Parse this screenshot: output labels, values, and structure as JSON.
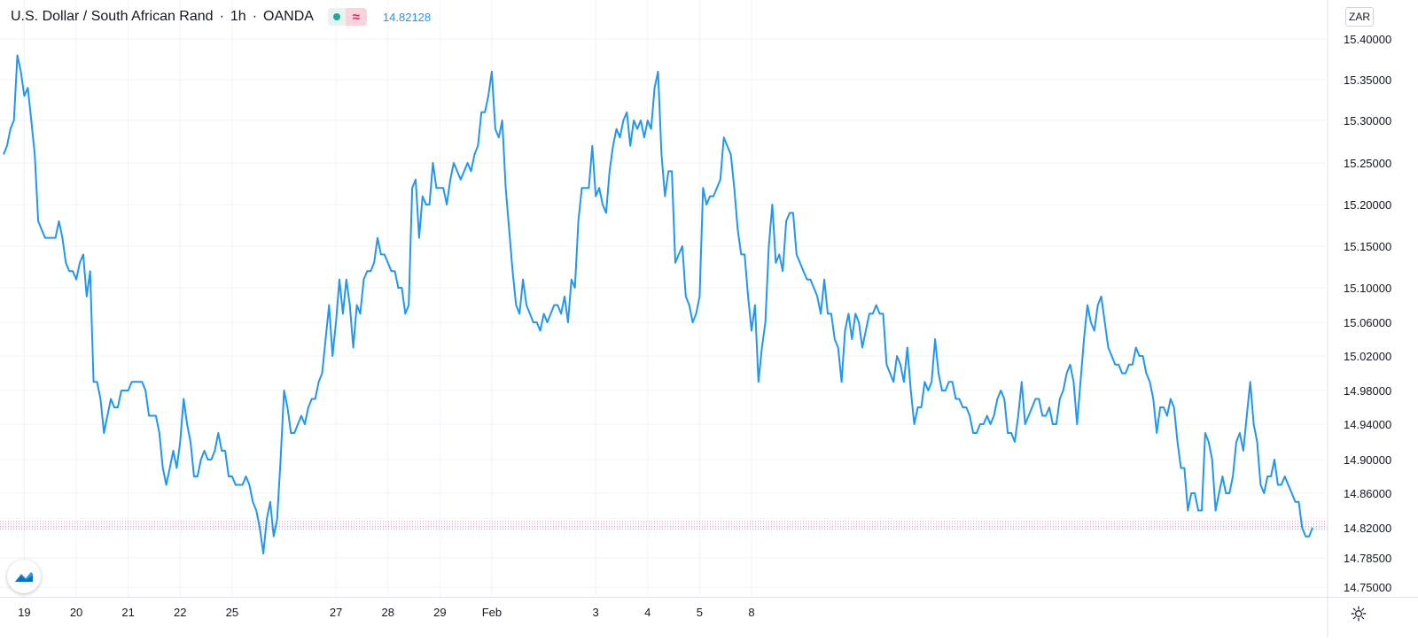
{
  "legend": {
    "symbol": "U.S. Dollar / South African Rand",
    "interval": "1h",
    "source": "OANDA",
    "last_price": "14.82128",
    "sep": "·",
    "wave_glyph": "≈"
  },
  "currency_label": "ZAR",
  "icons": {
    "market_status": "market-open-dot-icon",
    "indicator": "wave-icon",
    "logo": "tradingview-logo-icon",
    "settings": "gear-icon"
  },
  "colors": {
    "line": "#2196f3",
    "grid": "#f0f3fa",
    "axis_text": "#131722",
    "accent_green": "#26a69a",
    "accent_red": "#e0245e"
  },
  "chart_data": {
    "type": "line",
    "title": "U.S. Dollar / South African Rand · 1h · OANDA",
    "ylabel": "",
    "xlabel": "",
    "ylim": [
      14.75,
      15.42
    ],
    "y_ticks": [
      "15.40000",
      "15.35000",
      "15.30000",
      "15.25000",
      "15.20000",
      "15.15000",
      "15.10000",
      "15.06000",
      "15.02000",
      "14.98000",
      "14.94000",
      "14.90000",
      "14.86000",
      "14.82000",
      "14.78500",
      "14.75000"
    ],
    "x_ticks": [
      "19",
      "20",
      "21",
      "22",
      "25",
      "27",
      "28",
      "29",
      "Feb",
      "3",
      "4",
      "5",
      "8"
    ],
    "x_tick_index": [
      6,
      21,
      36,
      51,
      66,
      96,
      111,
      126,
      141,
      171,
      186,
      201,
      216
    ],
    "grid": true,
    "last_price": 14.82128,
    "series": [
      {
        "values": [
          15.26,
          15.27,
          15.29,
          15.3,
          15.38,
          15.36,
          15.33,
          15.34,
          15.3,
          15.26,
          15.18,
          15.17,
          15.16,
          15.16,
          15.16,
          15.16,
          15.18,
          15.16,
          15.13,
          15.12,
          15.12,
          15.11,
          15.13,
          15.14,
          15.09,
          15.12,
          14.99,
          14.99,
          14.97,
          14.93,
          14.95,
          14.97,
          14.96,
          14.96,
          14.98,
          14.98,
          14.98,
          14.99,
          14.99,
          14.99,
          14.99,
          14.98,
          14.95,
          14.95,
          14.95,
          14.93,
          14.89,
          14.87,
          14.89,
          14.91,
          14.89,
          14.92,
          14.97,
          14.94,
          14.92,
          14.88,
          14.88,
          14.9,
          14.91,
          14.9,
          14.9,
          14.91,
          14.93,
          14.91,
          14.91,
          14.88,
          14.88,
          14.87,
          14.87,
          14.87,
          14.88,
          14.87,
          14.85,
          14.84,
          14.82,
          14.79,
          14.83,
          14.85,
          14.81,
          14.83,
          14.9,
          14.98,
          14.96,
          14.93,
          14.93,
          14.94,
          14.95,
          14.94,
          14.96,
          14.97,
          14.97,
          14.99,
          15.0,
          15.04,
          15.08,
          15.02,
          15.06,
          15.11,
          15.07,
          15.11,
          15.08,
          15.03,
          15.08,
          15.07,
          15.11,
          15.12,
          15.12,
          15.13,
          15.16,
          15.14,
          15.14,
          15.13,
          15.12,
          15.12,
          15.1,
          15.1,
          15.07,
          15.08,
          15.22,
          15.23,
          15.16,
          15.21,
          15.2,
          15.2,
          15.25,
          15.22,
          15.22,
          15.22,
          15.2,
          15.23,
          15.25,
          15.24,
          15.23,
          15.24,
          15.25,
          15.24,
          15.26,
          15.27,
          15.31,
          15.31,
          15.33,
          15.36,
          15.29,
          15.28,
          15.3,
          15.22,
          15.17,
          15.12,
          15.08,
          15.07,
          15.11,
          15.08,
          15.07,
          15.06,
          15.06,
          15.05,
          15.07,
          15.06,
          15.07,
          15.08,
          15.08,
          15.07,
          15.09,
          15.06,
          15.11,
          15.1,
          15.18,
          15.22,
          15.22,
          15.22,
          15.27,
          15.21,
          15.22,
          15.2,
          15.19,
          15.24,
          15.27,
          15.29,
          15.28,
          15.3,
          15.31,
          15.27,
          15.3,
          15.29,
          15.3,
          15.28,
          15.3,
          15.29,
          15.34,
          15.36,
          15.26,
          15.21,
          15.24,
          15.24,
          15.13,
          15.14,
          15.15,
          15.09,
          15.08,
          15.06,
          15.07,
          15.09,
          15.22,
          15.2,
          15.21,
          15.21,
          15.22,
          15.23,
          15.28,
          15.27,
          15.26,
          15.22,
          15.17,
          15.14,
          15.14,
          15.09,
          15.05,
          15.08,
          14.99,
          15.03,
          15.06,
          15.15,
          15.2,
          15.13,
          15.14,
          15.12,
          15.18,
          15.19,
          15.19,
          15.14,
          15.13,
          15.12,
          15.11,
          15.11,
          15.1,
          15.09,
          15.07,
          15.11,
          15.07,
          15.07,
          15.04,
          15.03,
          14.99,
          15.05,
          15.07,
          15.04,
          15.07,
          15.06,
          15.03,
          15.05,
          15.07,
          15.07,
          15.08,
          15.07,
          15.07,
          15.01,
          15.0,
          14.99,
          15.02,
          15.01,
          14.99,
          15.03,
          14.98,
          14.94,
          14.96,
          14.96,
          14.99,
          14.98,
          14.99,
          15.04,
          15.0,
          14.98,
          14.98,
          14.99,
          14.99,
          14.97,
          14.97,
          14.96,
          14.96,
          14.95,
          14.93,
          14.93,
          14.94,
          14.94,
          14.95,
          14.94,
          14.95,
          14.97,
          14.98,
          14.97,
          14.93,
          14.93,
          14.92,
          14.95,
          14.99,
          14.94,
          14.95,
          14.96,
          14.97,
          14.97,
          14.95,
          14.95,
          14.96,
          14.94,
          14.94,
          14.97,
          14.98,
          15.0,
          15.01,
          14.99,
          14.94,
          14.99,
          15.04,
          15.08,
          15.06,
          15.05,
          15.08,
          15.09,
          15.06,
          15.03,
          15.02,
          15.01,
          15.01,
          15.0,
          15.0,
          15.01,
          15.01,
          15.03,
          15.02,
          15.02,
          15.0,
          14.99,
          14.97,
          14.93,
          14.96,
          14.96,
          14.95,
          14.97,
          14.96,
          14.92,
          14.89,
          14.89,
          14.84,
          14.86,
          14.86,
          14.84,
          14.84,
          14.93,
          14.92,
          14.9,
          14.84,
          14.86,
          14.88,
          14.86,
          14.86,
          14.88,
          14.92,
          14.93,
          14.91,
          14.95,
          14.99,
          14.94,
          14.92,
          14.87,
          14.86,
          14.88,
          14.88,
          14.9,
          14.87,
          14.87,
          14.88,
          14.87,
          14.86,
          14.85,
          14.85,
          14.82,
          14.81,
          14.81,
          14.82
        ]
      }
    ]
  }
}
